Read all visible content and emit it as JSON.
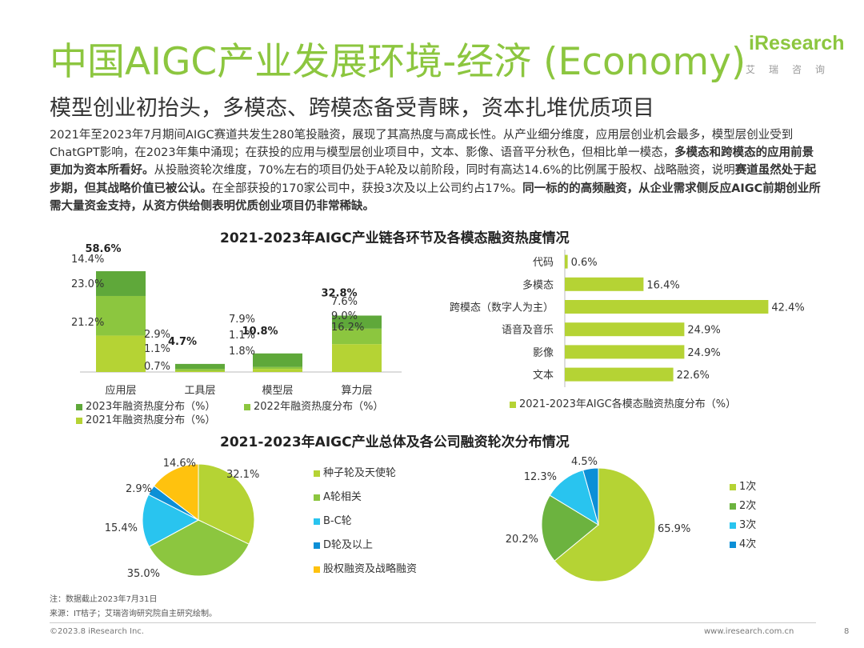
{
  "header": {
    "title": "中国AIGC产业发展环境-经济 (Economy)",
    "subtitle": "模型创业初抬头，多模态、跨模态备受青睐，资本扎堆优质项目",
    "logo_text": "iResearch",
    "logo_sub": "艾瑞咨询"
  },
  "intro": {
    "p1": "2021年至2023年7月期间AIGC赛道共发生280笔投融资，展现了其高热度与高成长性。从产业细分维度，应用层创业机会最多，模型层创业受到ChatGPT影响，在2023年集中涌现；在获投的应用与模型层创业项目中，文本、影像、语音平分秋色，但相比单一模态，",
    "b1": "多模态和跨模态的应用前景更加为资本所看好。",
    "p2": "从投融资轮次维度，70%左右的项目仍处于A轮及以前阶段，同时有高达14.6%的比例属于股权、战略融资，说明",
    "b2": "赛道虽然处于起步期，但其战略价值已被公认。",
    "p3": "在全部获投的170家公司中，获投3次及以上公司约占17%。",
    "b3": "同一标的的高频融资，从企业需求侧反应AIGC前期创业所需大量资金支持，从资方供给侧表明优质创业项目仍非常稀缺。"
  },
  "section1_title": "2021-2023年AIGC产业链各环节及各模态融资热度情况",
  "section2_title": "2021-2023年AIGC产业总体及各公司融资轮次分布情况",
  "chart_data": [
    {
      "type": "bar",
      "stacked": true,
      "categories": [
        "应用层",
        "工具层",
        "模型层",
        "算力层"
      ],
      "totals_labels": [
        "58.6%",
        "4.7%",
        "10.8%",
        "32.8%"
      ],
      "series": [
        {
          "name": "2021年融资热度分布（%）",
          "color": "#b5d334",
          "values": [
            21.2,
            0.7,
            1.8,
            16.2
          ]
        },
        {
          "name": "2022年融资热度分布（%）",
          "color": "#8cc63f",
          "values": [
            23.0,
            1.1,
            1.1,
            9.0
          ]
        },
        {
          "name": "2023年融资热度分布（%）",
          "color": "#5fa83a",
          "values": [
            14.4,
            2.9,
            7.9,
            7.6
          ]
        }
      ],
      "value_labels": [
        [
          "21.2%",
          "23.0%",
          "14.4%"
        ],
        [
          "0.7%",
          "1.1%",
          "2.9%"
        ],
        [
          "1.8%",
          "1.1%",
          "7.9%"
        ],
        [
          "16.2%",
          "9.0%",
          "7.6%"
        ]
      ]
    },
    {
      "type": "bar",
      "orientation": "horizontal",
      "categories": [
        "代码",
        "多模态",
        "跨模态（数字人为主）",
        "语音及音乐",
        "影像",
        "文本"
      ],
      "values": [
        0.6,
        16.4,
        42.4,
        24.9,
        24.9,
        22.6
      ],
      "labels": [
        "0.6%",
        "16.4%",
        "42.4%",
        "24.9%",
        "24.9%",
        "22.6%"
      ],
      "legend": "2021-2023年AIGC各模态融资热度分布（%）",
      "color": "#b5d334"
    },
    {
      "type": "pie",
      "labels": [
        "种子轮及天使轮",
        "A轮相关",
        "B-C轮",
        "D轮及以上",
        "股权融资及战略融资"
      ],
      "values": [
        32.1,
        35.0,
        15.4,
        2.9,
        14.6
      ],
      "value_labels": [
        "32.1%",
        "35.0%",
        "15.4%",
        "2.9%",
        "14.6%"
      ],
      "colors": [
        "#b5d334",
        "#8cc63f",
        "#29c4ef",
        "#0c8fd6",
        "#ffc20e"
      ]
    },
    {
      "type": "pie",
      "labels": [
        "1次",
        "2次",
        "3次",
        "4次"
      ],
      "values": [
        65.9,
        20.2,
        12.3,
        4.5
      ],
      "value_labels": [
        "65.9%",
        "20.2%",
        "12.3%",
        "4.5%"
      ],
      "colors": [
        "#b5d334",
        "#6cb33f",
        "#29c4ef",
        "#0c8fd6"
      ]
    }
  ],
  "footer": {
    "note": "注：数据截止2023年7月31日",
    "source": "来源：IT桔子；艾瑞咨询研究院自主研究绘制。",
    "copyright": "©2023.8 iResearch Inc.",
    "website": "www.iresearch.com.cn",
    "page": "8"
  }
}
